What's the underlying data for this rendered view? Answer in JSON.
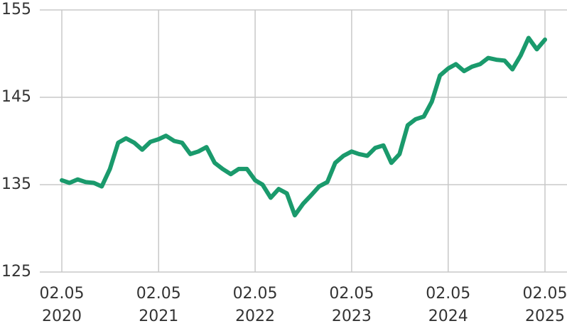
{
  "chart_data": {
    "type": "line",
    "x": [
      "2020-02-05",
      "2020-03-05",
      "2020-04-05",
      "2020-05-05",
      "2020-06-05",
      "2020-07-05",
      "2020-08-05",
      "2020-09-05",
      "2020-10-05",
      "2020-11-05",
      "2020-12-05",
      "2021-01-05",
      "2021-02-05",
      "2021-03-05",
      "2021-04-05",
      "2021-05-05",
      "2021-06-05",
      "2021-07-05",
      "2021-08-05",
      "2021-09-05",
      "2021-10-05",
      "2021-11-05",
      "2021-12-05",
      "2022-01-05",
      "2022-02-05",
      "2022-03-05",
      "2022-04-05",
      "2022-05-05",
      "2022-06-05",
      "2022-07-05",
      "2022-08-05",
      "2022-09-05",
      "2022-10-05",
      "2022-11-05",
      "2022-12-05",
      "2023-01-05",
      "2023-02-05",
      "2023-03-05",
      "2023-04-05",
      "2023-05-05",
      "2023-06-05",
      "2023-07-05",
      "2023-08-05",
      "2023-09-05",
      "2023-10-05",
      "2023-11-05",
      "2023-12-05",
      "2024-01-05",
      "2024-02-05",
      "2024-03-05",
      "2024-04-05",
      "2024-05-05",
      "2024-06-05",
      "2024-07-05",
      "2024-08-05",
      "2024-09-05",
      "2024-10-05",
      "2024-11-05",
      "2024-12-05",
      "2025-01-05",
      "2025-02-05"
    ],
    "series": [
      {
        "color": "#1a9a6c",
        "values": [
          135.5,
          135.2,
          135.6,
          135.3,
          135.2,
          134.8,
          136.8,
          139.8,
          140.3,
          139.8,
          139.0,
          139.9,
          140.2,
          140.6,
          140.0,
          139.8,
          138.5,
          138.8,
          139.3,
          137.5,
          136.8,
          136.2,
          136.8,
          136.8,
          135.5,
          135.0,
          133.5,
          134.5,
          134.0,
          131.5,
          132.8,
          133.8,
          134.8,
          135.3,
          137.5,
          138.3,
          138.8,
          138.5,
          138.3,
          139.2,
          139.5,
          137.5,
          138.5,
          141.8,
          142.5,
          142.8,
          144.5,
          147.5,
          148.3,
          148.8,
          148.0,
          148.5,
          148.8,
          149.5,
          149.3,
          149.2,
          148.2,
          149.8,
          151.8,
          150.5,
          151.6
        ]
      }
    ],
    "xlim": [
      "2020-02-05",
      "2025-02-05"
    ],
    "xticks": [
      {
        "value": "2020-02-05",
        "label": "02.05\n2020"
      },
      {
        "value": "2021-02-05",
        "label": "02.05\n2021"
      },
      {
        "value": "2022-02-05",
        "label": "02.05\n2022"
      },
      {
        "value": "2023-02-05",
        "label": "02.05\n2023"
      },
      {
        "value": "2024-02-05",
        "label": "02.05\n2024"
      },
      {
        "value": "2025-02-05",
        "label": "02.05\n2025"
      }
    ],
    "ylim": [
      125,
      155
    ],
    "yticks": [
      125,
      135,
      145,
      155
    ],
    "grid": true
  }
}
